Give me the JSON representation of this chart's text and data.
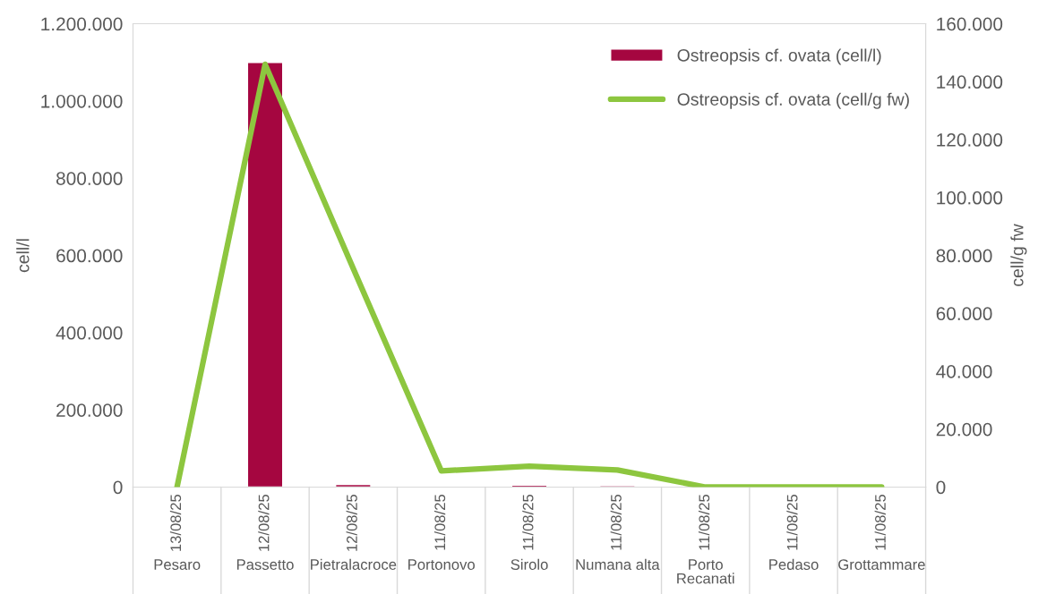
{
  "chart_data": {
    "type": "bar",
    "categories": [
      "13/08/25\nPesaro",
      "12/08/25\nPassetto",
      "12/08/25\nPietralacroce",
      "11/08/25\nPortonovo",
      "11/08/25\nSirolo",
      "11/08/25\nNumana alta",
      "11/08/25\nPorto\nRecanati",
      "11/08/25\nPedaso",
      "11/08/25\nGrottammare"
    ],
    "series": [
      {
        "name": "Ostreopsis cf. ovata (cell/l)",
        "color": "#a50640",
        "values": [
          null,
          1100000,
          7000,
          3000,
          5000,
          4000,
          null,
          null,
          null
        ]
      },
      {
        "name": "Ostreopsis cf. ovata (cell/g fw)",
        "type": "line",
        "axis": "y2",
        "color": "#8dc63f",
        "values": [
          0,
          146000,
          75500,
          5600,
          7200,
          5900,
          0,
          0,
          0
        ]
      }
    ],
    "ylabel": "cell/l",
    "y2label": "cell/g fw",
    "ylim": [
      0,
      1200000
    ],
    "yticks": [
      {
        "value": 0,
        "label": "0"
      },
      {
        "value": 200000,
        "label": "200.000"
      },
      {
        "value": 400000,
        "label": "400.000"
      },
      {
        "value": 600000,
        "label": "600.000"
      },
      {
        "value": 800000,
        "label": "800.000"
      },
      {
        "value": 1000000,
        "label": "1.000.000"
      },
      {
        "value": 1200000,
        "label": "1.200.000"
      }
    ],
    "y2lim": [
      0,
      160000
    ],
    "y2ticks": [
      {
        "value": 0,
        "label": "0"
      },
      {
        "value": 20000,
        "label": "20.000"
      },
      {
        "value": 40000,
        "label": "40.000"
      },
      {
        "value": 60000,
        "label": "60.000"
      },
      {
        "value": 80000,
        "label": "80.000"
      },
      {
        "value": 100000,
        "label": "100.000"
      },
      {
        "value": 120000,
        "label": "120.000"
      },
      {
        "value": 140000,
        "label": "140.000"
      },
      {
        "value": 160000,
        "label": "160.000"
      }
    ],
    "grid": false,
    "legend": "top right"
  }
}
